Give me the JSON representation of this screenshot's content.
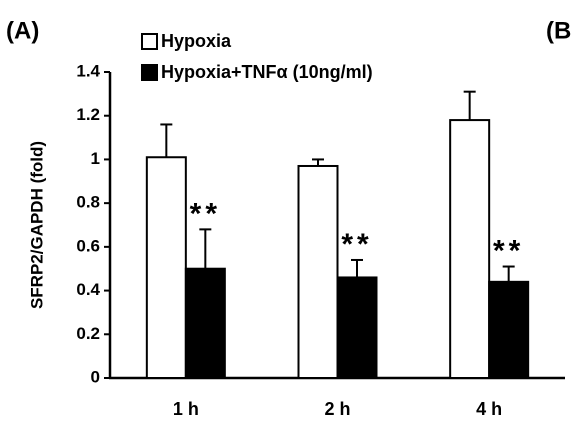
{
  "chart_data": {
    "type": "bar",
    "panel_labels": [
      "(A)",
      "(B"
    ],
    "y_label": "SFRP2/GAPDH (fold)",
    "categories": [
      "1 h",
      "2 h",
      "4 h"
    ],
    "series": [
      {
        "name": "Hypoxia",
        "color": "#ffffff",
        "values": [
          1.01,
          0.97,
          1.18
        ],
        "errors": [
          0.15,
          0.03,
          0.13
        ]
      },
      {
        "name": "Hypoxia+TNFα (10ng/ml)",
        "color": "#000000",
        "values": [
          0.5,
          0.46,
          0.44
        ],
        "errors": [
          0.18,
          0.08,
          0.07
        ]
      }
    ],
    "annotations": [
      "**",
      "**",
      "**"
    ],
    "ylim": [
      0,
      1.4
    ],
    "yticks": [
      0,
      0.2,
      0.4,
      0.6,
      0.8,
      1,
      1.2,
      1.4
    ]
  }
}
